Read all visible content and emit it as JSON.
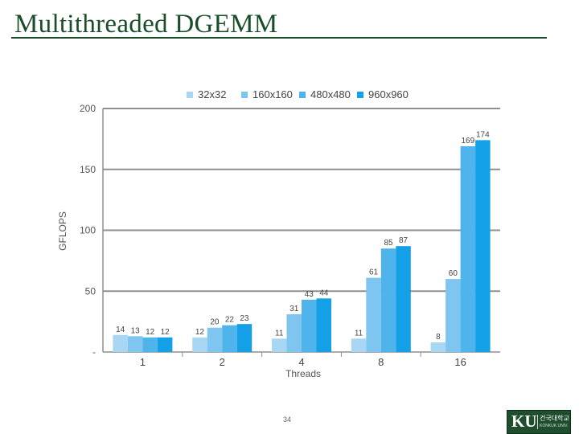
{
  "slide": {
    "title": "Multithreaded DGEMM",
    "page_number": "34"
  },
  "logo": {
    "mark": "KU",
    "kr_name": "건국대학교",
    "en_name": "KONKUK UNIV."
  },
  "chart_data": {
    "type": "bar",
    "title": "",
    "xlabel": "Threads",
    "ylabel": "GFLOPS",
    "categories": [
      "1",
      "2",
      "4",
      "8",
      "16"
    ],
    "ylim": [
      0,
      200
    ],
    "yticks": [
      0,
      50,
      100,
      150,
      200
    ],
    "ytick_labels": [
      "-",
      "50",
      "100",
      "150",
      "200"
    ],
    "grid": true,
    "legend_position": "top",
    "series": [
      {
        "name": "32x32",
        "color": "#a9d7f3",
        "values": [
          14,
          12,
          11,
          11,
          8
        ]
      },
      {
        "name": "160x160",
        "color": "#7ec6ef",
        "values": [
          13,
          20,
          31,
          61,
          60
        ]
      },
      {
        "name": "480x480",
        "color": "#4fb3ec",
        "values": [
          12,
          22,
          43,
          85,
          169
        ]
      },
      {
        "name": "960x960",
        "color": "#14a0e6",
        "values": [
          12,
          23,
          44,
          87,
          174
        ]
      }
    ]
  }
}
